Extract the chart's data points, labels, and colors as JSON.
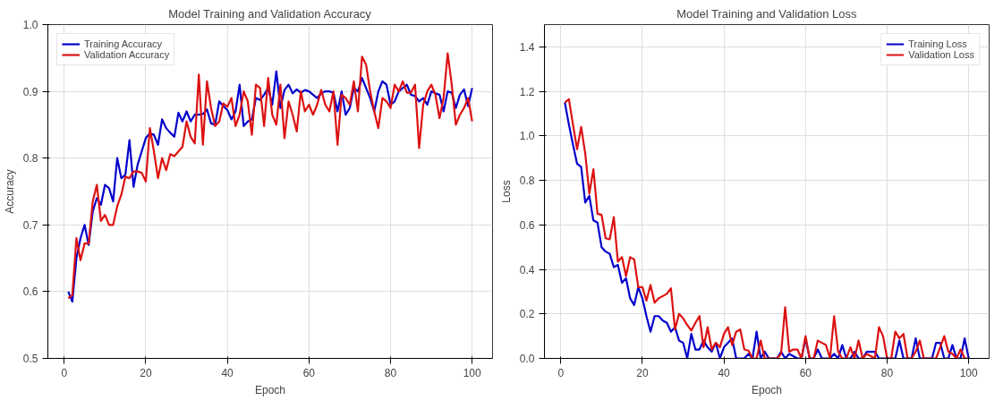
{
  "chart_data": [
    {
      "type": "line",
      "title": "Model Training and Validation Accuracy",
      "xlabel": "Epoch",
      "ylabel": "Accuracy",
      "xlim": [
        -4,
        105
      ],
      "xticks": [
        0,
        20,
        40,
        60,
        80,
        100
      ],
      "ylim": [
        0.5,
        1.0
      ],
      "yticks": [
        {
          "value": 0.5,
          "label": "0.5"
        },
        0.6,
        0.7,
        0.8,
        0.9,
        {
          "value": 1.0,
          "label": "1.0"
        }
      ],
      "grid": true,
      "legend": "top left",
      "line_style": "solid",
      "marker": "none",
      "x": [
        1,
        2,
        3,
        4,
        5,
        6,
        7,
        8,
        9,
        10,
        11,
        12,
        13,
        14,
        15,
        16,
        17,
        18,
        19,
        20,
        21,
        22,
        23,
        24,
        25,
        26,
        27,
        28,
        29,
        30,
        31,
        32,
        33,
        34,
        35,
        36,
        37,
        38,
        39,
        40,
        41,
        42,
        43,
        44,
        45,
        46,
        47,
        48,
        49,
        50,
        51,
        52,
        53,
        54,
        55,
        56,
        57,
        58,
        59,
        60,
        61,
        62,
        63,
        64,
        65,
        66,
        67,
        68,
        69,
        70,
        71,
        72,
        73,
        74,
        75,
        76,
        77,
        78,
        79,
        80,
        81,
        82,
        83,
        84,
        85,
        86,
        87,
        88,
        89,
        90,
        91,
        92,
        93,
        94,
        95,
        96,
        97,
        98,
        99,
        100
      ],
      "series": [
        {
          "name": "Training Accuracy",
          "color": "#0000cc",
          "values": [
            0.6,
            0.585,
            0.65,
            0.68,
            0.7,
            0.67,
            0.72,
            0.74,
            0.73,
            0.76,
            0.755,
            0.735,
            0.8,
            0.77,
            0.775,
            0.827,
            0.757,
            0.79,
            0.81,
            0.83,
            0.837,
            0.835,
            0.82,
            0.858,
            0.845,
            0.838,
            0.832,
            0.868,
            0.855,
            0.87,
            0.855,
            0.865,
            0.865,
            0.866,
            0.873,
            0.852,
            0.85,
            0.885,
            0.878,
            0.872,
            0.858,
            0.87,
            0.91,
            0.848,
            0.855,
            0.858,
            0.89,
            0.887,
            0.895,
            0.905,
            0.88,
            0.93,
            0.875,
            0.902,
            0.91,
            0.897,
            0.903,
            0.898,
            0.902,
            0.9,
            0.895,
            0.89,
            0.897,
            0.9,
            0.9,
            0.898,
            0.87,
            0.9,
            0.865,
            0.875,
            0.905,
            0.9,
            0.92,
            0.905,
            0.89,
            0.87,
            0.9,
            0.915,
            0.91,
            0.88,
            0.885,
            0.9,
            0.905,
            0.91,
            0.895,
            0.893,
            0.885,
            0.89,
            0.88,
            0.9,
            0.897,
            0.895,
            0.87,
            0.9,
            0.898,
            0.875,
            0.895,
            0.903,
            0.878,
            0.905
          ]
        },
        {
          "name": "Validation Accuracy",
          "color": "#dd1111",
          "values": [
            0.59,
            0.595,
            0.68,
            0.647,
            0.672,
            0.672,
            0.735,
            0.76,
            0.706,
            0.715,
            0.7,
            0.7,
            0.728,
            0.745,
            0.772,
            0.77,
            0.78,
            0.78,
            0.778,
            0.765,
            0.845,
            0.81,
            0.77,
            0.8,
            0.782,
            0.806,
            0.803,
            0.81,
            0.817,
            0.855,
            0.832,
            0.822,
            0.925,
            0.82,
            0.915,
            0.875,
            0.848,
            0.855,
            0.882,
            0.877,
            0.89,
            0.848,
            0.865,
            0.9,
            0.885,
            0.835,
            0.91,
            0.905,
            0.848,
            0.92,
            0.865,
            0.85,
            0.91,
            0.83,
            0.885,
            0.865,
            0.84,
            0.9,
            0.87,
            0.88,
            0.865,
            0.88,
            0.902,
            0.88,
            0.87,
            0.9,
            0.82,
            0.895,
            0.89,
            0.88,
            0.915,
            0.87,
            0.952,
            0.94,
            0.9,
            0.87,
            0.845,
            0.89,
            0.885,
            0.875,
            0.91,
            0.9,
            0.915,
            0.898,
            0.898,
            0.91,
            0.815,
            0.88,
            0.9,
            0.91,
            0.895,
            0.86,
            0.89,
            0.957,
            0.91,
            0.85,
            0.865,
            0.875,
            0.89,
            0.855
          ]
        }
      ]
    },
    {
      "type": "line",
      "title": "Model Training and Validation Loss",
      "xlabel": "Epoch",
      "ylabel": "Loss",
      "xlim": [
        -4,
        105
      ],
      "xticks": [
        0,
        20,
        40,
        60,
        80,
        100
      ],
      "ylim": [
        0.0,
        1.5
      ],
      "yticks": [
        {
          "value": 0.0,
          "label": "0.0"
        },
        0.2,
        0.4,
        0.6,
        0.8,
        {
          "value": 1.0,
          "label": "1.0"
        },
        1.2,
        1.4
      ],
      "grid": true,
      "legend": "top right",
      "line_style": "solid",
      "marker": "none",
      "x": [
        1,
        2,
        3,
        4,
        5,
        6,
        7,
        8,
        9,
        10,
        11,
        12,
        13,
        14,
        15,
        16,
        17,
        18,
        19,
        20,
        21,
        22,
        23,
        24,
        25,
        26,
        27,
        28,
        29,
        30,
        31,
        32,
        33,
        34,
        35,
        36,
        37,
        38,
        39,
        40,
        41,
        42,
        43,
        44,
        45,
        46,
        47,
        48,
        49,
        50,
        51,
        52,
        53,
        54,
        55,
        56,
        57,
        58,
        59,
        60,
        61,
        62,
        63,
        64,
        65,
        66,
        67,
        68,
        69,
        70,
        71,
        72,
        73,
        74,
        75,
        76,
        77,
        78,
        79,
        80,
        81,
        82,
        83,
        84,
        85,
        86,
        87,
        88,
        89,
        90,
        91,
        92,
        93,
        94,
        95,
        96,
        97,
        98,
        99,
        100
      ],
      "series": [
        {
          "name": "Training Loss",
          "color": "#0000cc",
          "values": [
            1.15,
            1.05,
            0.96,
            0.875,
            0.86,
            0.7,
            0.73,
            0.62,
            0.61,
            0.5,
            0.48,
            0.47,
            0.41,
            0.42,
            0.34,
            0.36,
            0.27,
            0.24,
            0.32,
            0.27,
            0.19,
            0.12,
            0.19,
            0.19,
            0.17,
            0.16,
            0.12,
            0.14,
            0.08,
            0.07,
            0.0,
            0.11,
            0.04,
            0.04,
            0.08,
            0.05,
            0.03,
            0.07,
            0.0,
            0.05,
            0.07,
            0.09,
            0.0,
            0.0,
            0.0,
            0.02,
            0.0,
            0.12,
            0.0,
            0.03,
            0.0,
            0.0,
            0.0,
            0.03,
            0.0,
            0.02,
            0.01,
            0.0,
            0.0,
            0.09,
            0.0,
            0.0,
            0.04,
            0.0,
            0.0,
            0.0,
            0.02,
            0.0,
            0.06,
            0.0,
            0.0,
            0.03,
            0.0,
            0.0,
            0.03,
            0.03,
            0.03,
            0.0,
            0.0,
            0.0,
            0.0,
            0.0,
            0.08,
            0.0,
            0.0,
            0.0,
            0.09,
            0.0,
            0.0,
            0.0,
            0.0,
            0.07,
            0.07,
            0.0,
            0.0,
            0.06,
            0.0,
            0.0,
            0.09,
            0.0
          ]
        },
        {
          "name": "Validation Loss",
          "color": "#dd1111",
          "values": [
            1.15,
            1.165,
            1.05,
            0.94,
            1.04,
            0.92,
            0.74,
            0.85,
            0.65,
            0.645,
            0.54,
            0.535,
            0.635,
            0.435,
            0.455,
            0.37,
            0.455,
            0.445,
            0.32,
            0.32,
            0.26,
            0.33,
            0.25,
            0.27,
            0.28,
            0.29,
            0.315,
            0.13,
            0.2,
            0.18,
            0.15,
            0.125,
            0.16,
            0.19,
            0.05,
            0.14,
            0.04,
            0.07,
            0.05,
            0.11,
            0.14,
            0.06,
            0.12,
            0.13,
            0.04,
            0.035,
            0.0,
            0.0,
            0.08,
            0.0,
            0.0,
            0.0,
            0.0,
            0.02,
            0.23,
            0.03,
            0.04,
            0.04,
            0.0,
            0.1,
            0.0,
            0.0,
            0.08,
            0.07,
            0.06,
            0.0,
            0.19,
            0.03,
            0.0,
            0.0,
            0.05,
            0.0,
            0.08,
            0.0,
            0.02,
            0.01,
            0.0,
            0.14,
            0.1,
            0.0,
            0.0,
            0.12,
            0.09,
            0.11,
            0.0,
            0.0,
            0.03,
            0.08,
            0.0,
            0.0,
            0.0,
            0.0,
            0.05,
            0.1,
            0.03,
            0.02,
            0.0,
            0.04,
            0.0,
            0.0
          ]
        }
      ]
    }
  ]
}
